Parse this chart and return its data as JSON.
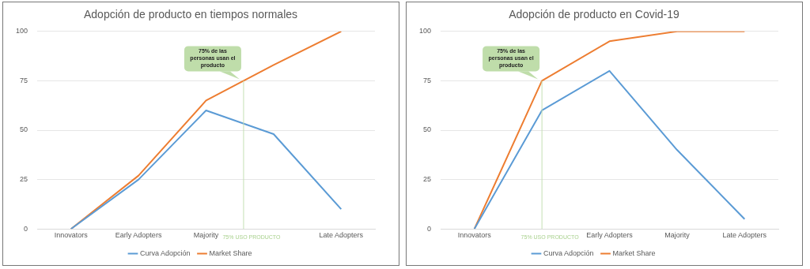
{
  "chart_data": [
    {
      "type": "line",
      "title": "Adopción de producto en tiempos normales",
      "categories": [
        "Innovators",
        "Early Adopters",
        "Majority",
        null,
        "Late Adopters"
      ],
      "ylim": [
        0,
        100
      ],
      "yticks": [
        0,
        25,
        50,
        75,
        100
      ],
      "grid": "y",
      "legend": "bottom",
      "series": [
        {
          "name": "Curva Adopción",
          "color": "#5b9bd5",
          "values": [
            0,
            25,
            60,
            48,
            10
          ]
        },
        {
          "name": "Market Share",
          "color": "#ed7d31",
          "values": [
            0,
            27,
            65,
            83,
            100
          ]
        }
      ],
      "annotations": [
        "75% de las personas usan el producto",
        "75% USO PRODUCTO"
      ]
    },
    {
      "type": "line",
      "title": "Adopción de producto en Covid-19",
      "categories": [
        "Innovators",
        null,
        "Early Adopters",
        "Majority",
        "Late Adopters"
      ],
      "ylim": [
        0,
        100
      ],
      "yticks": [
        0,
        25,
        50,
        75,
        100
      ],
      "grid": "y",
      "legend": "bottom",
      "series": [
        {
          "name": "Curva Adopción",
          "color": "#5b9bd5",
          "values": [
            0,
            60,
            80,
            40,
            5
          ]
        },
        {
          "name": "Market Share",
          "color": "#ed7d31",
          "values": [
            0,
            75,
            95,
            100,
            100
          ]
        }
      ],
      "annotations": [
        "75% de las personas usan el producto",
        "75% USO PRODUCTO"
      ]
    }
  ]
}
